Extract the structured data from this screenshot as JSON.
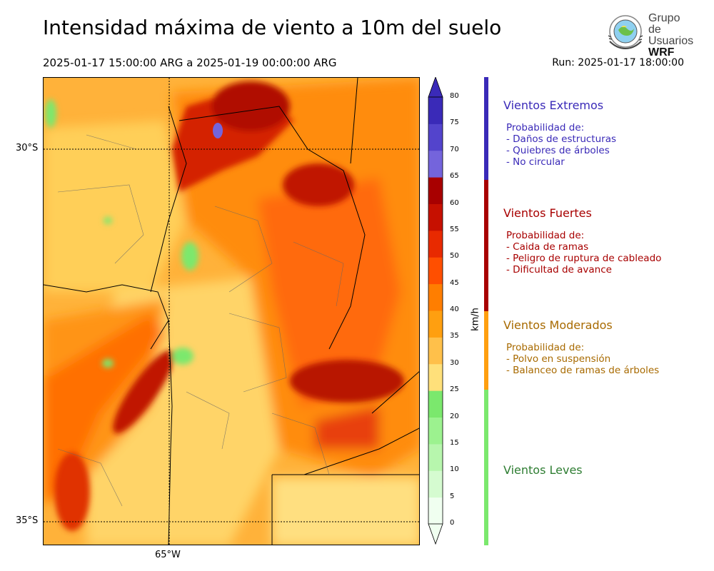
{
  "title": "Intensidad máxima de viento a 10m del suelo",
  "period": "2025-01-17 15:00:00 ARG  a  2025-01-19 00:00:00 ARG",
  "run": "Run: 2025-01-17 18:00:00",
  "logo": {
    "line1": "Grupo de",
    "line2": "Usuarios",
    "line3": "WRF"
  },
  "map": {
    "lat_labels": [
      "30°S",
      "35°S"
    ],
    "lon_labels": [
      "65°W"
    ]
  },
  "colorbar": {
    "unit": "km/h",
    "ticks": [
      "0",
      "5",
      "10",
      "15",
      "20",
      "25",
      "30",
      "35",
      "40",
      "45",
      "50",
      "55",
      "60",
      "65",
      "70",
      "75",
      "80"
    ],
    "colors": [
      "#f0fff0",
      "#d5fbd0",
      "#b7f6ad",
      "#9cf28f",
      "#7be86d",
      "#ffe07a",
      "#ffc04a",
      "#ff9f10",
      "#ff7e00",
      "#ff4f00",
      "#e82a00",
      "#c61000",
      "#a80000",
      "#7464dc",
      "#5344cc",
      "#3a2ab8"
    ]
  },
  "categories": [
    {
      "title": "Vientos Extremos",
      "color": "#3a2ab8",
      "intro": "Probabilidad de:",
      "items": [
        "- Daños de estructuras",
        "- Quiebres de árboles",
        "- No circular"
      ]
    },
    {
      "title": "Vientos Fuertes",
      "color": "#a80000",
      "intro": "Probabilidad de:",
      "items": [
        "- Caida de ramas",
        "- Peligro de ruptura de cableado",
        "- Dificultad de avance"
      ]
    },
    {
      "title": "Vientos Moderados",
      "color": "#a86a00",
      "bar_color": "#ff9f10",
      "intro": "Probabilidad de:",
      "items": [
        "- Polvo en suspensión",
        "- Balanceo de ramas de árboles"
      ]
    },
    {
      "title": "Vientos Leves",
      "color": "#2e7d32",
      "bar_color": "#7be86d"
    }
  ]
}
